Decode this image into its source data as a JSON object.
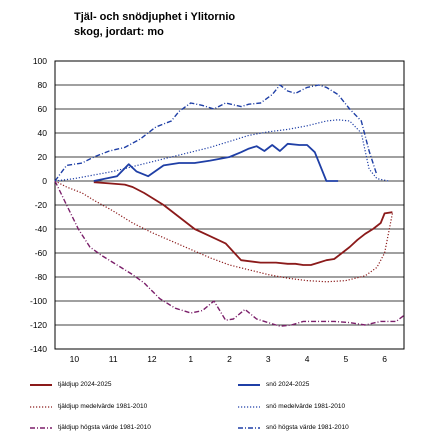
{
  "chart_data": {
    "type": "line",
    "title_line1": "Tjäl- och snödjuphet i Ylitornio",
    "title_line2": "skog, jordart: mo",
    "xlabel": "",
    "ylabel": "",
    "ylim": [
      -140,
      100
    ],
    "yticks": [
      100,
      80,
      60,
      40,
      20,
      0,
      -20,
      -40,
      -60,
      -80,
      -100,
      -120,
      -140
    ],
    "xlim": [
      0,
      9
    ],
    "xtick_labels": [
      "10",
      "11",
      "12",
      "1",
      "2",
      "3",
      "4",
      "5",
      "6"
    ],
    "grid": true,
    "legend_position": "bottom",
    "series": [
      {
        "name": "tjäldjup 2024-2025",
        "color": "#8b1a1a",
        "style": "solid",
        "x": [
          1.0,
          1.4,
          1.8,
          2.0,
          2.3,
          2.8,
          3.2,
          3.6,
          4.0,
          4.4,
          4.8,
          5.3,
          5.7,
          6.0,
          6.2,
          6.4,
          6.6,
          6.8,
          7.0,
          7.2,
          7.4,
          7.6,
          7.8,
          8.0,
          8.2,
          8.4,
          8.5,
          8.7
        ],
        "y": [
          -1,
          -2,
          -3,
          -5,
          -10,
          -20,
          -30,
          -40,
          -46,
          -52,
          -66,
          -68,
          -68,
          -69,
          -69,
          -70,
          -70,
          -68,
          -66,
          -65,
          -60,
          -55,
          -49,
          -44,
          -40,
          -35,
          -27,
          -26
        ]
      },
      {
        "name": "snö 2024-2025",
        "color": "#1f3fa6",
        "style": "solid",
        "x": [
          1.0,
          1.3,
          1.6,
          1.9,
          2.1,
          2.4,
          2.8,
          3.2,
          3.6,
          4.0,
          4.5,
          4.8,
          5.0,
          5.2,
          5.4,
          5.6,
          5.8,
          6.0,
          6.3,
          6.5,
          6.7,
          7.0,
          7.3
        ],
        "y": [
          0,
          2,
          4,
          14,
          8,
          4,
          13,
          15,
          15,
          17,
          20,
          24,
          27,
          29,
          25,
          30,
          25,
          31,
          30,
          30,
          24,
          0,
          0
        ]
      },
      {
        "name": "tjäldjup medelvärde 1981-2010",
        "color": "#8b1a1a",
        "style": "dotted",
        "x": [
          0.0,
          0.3,
          0.7,
          1.0,
          1.5,
          2.0,
          2.5,
          3.0,
          3.5,
          4.0,
          4.5,
          5.0,
          5.5,
          6.0,
          6.5,
          7.0,
          7.5,
          8.0,
          8.3,
          8.5,
          8.7
        ],
        "y": [
          0,
          -5,
          -10,
          -16,
          -25,
          -35,
          -43,
          -50,
          -57,
          -64,
          -70,
          -74,
          -78,
          -81,
          -83,
          -84,
          -83,
          -79,
          -72,
          -60,
          -27
        ]
      },
      {
        "name": "snö medelvärde 1981-2010",
        "color": "#1f3fa6",
        "style": "dotted",
        "x": [
          0.0,
          0.5,
          1.0,
          1.5,
          2.0,
          2.5,
          3.0,
          3.5,
          4.0,
          4.5,
          5.0,
          5.5,
          6.0,
          6.5,
          7.0,
          7.3,
          7.6,
          7.9,
          8.1,
          8.3,
          8.6
        ],
        "y": [
          0,
          2,
          5,
          8,
          12,
          16,
          20,
          24,
          28,
          33,
          38,
          41,
          43,
          46,
          50,
          51,
          50,
          40,
          10,
          2,
          0
        ]
      },
      {
        "name": "tjäldjup högsta värde 1981-2010",
        "color": "#7b1f6a",
        "style": "dashdot",
        "x": [
          0.0,
          0.3,
          0.6,
          0.9,
          1.2,
          1.5,
          2.0,
          2.3,
          2.7,
          3.1,
          3.5,
          3.8,
          4.1,
          4.4,
          4.6,
          4.9,
          5.2,
          5.5,
          5.8,
          6.1,
          6.4,
          6.8,
          7.2,
          7.6,
          8.0,
          8.4,
          8.8,
          9.0
        ],
        "y": [
          0,
          -20,
          -40,
          -55,
          -62,
          -68,
          -78,
          -85,
          -98,
          -106,
          -110,
          -108,
          -100,
          -116,
          -115,
          -107,
          -115,
          -118,
          -121,
          -120,
          -117,
          -117,
          -117,
          -118,
          -120,
          -117,
          -117,
          -112
        ]
      },
      {
        "name": "snö högsta värde 1981-2010",
        "color": "#1f3fa6",
        "style": "dashdot",
        "x": [
          0.0,
          0.3,
          0.7,
          1.0,
          1.4,
          1.8,
          2.2,
          2.6,
          3.0,
          3.2,
          3.5,
          3.8,
          4.1,
          4.4,
          4.8,
          5.0,
          5.3,
          5.6,
          5.8,
          6.0,
          6.2,
          6.5,
          6.8,
          7.0,
          7.3,
          7.6,
          7.9,
          8.1,
          8.3
        ],
        "y": [
          0,
          13,
          15,
          20,
          25,
          28,
          35,
          45,
          50,
          58,
          65,
          63,
          60,
          65,
          62,
          64,
          65,
          72,
          80,
          75,
          73,
          78,
          80,
          78,
          72,
          60,
          50,
          25,
          5
        ]
      }
    ]
  }
}
